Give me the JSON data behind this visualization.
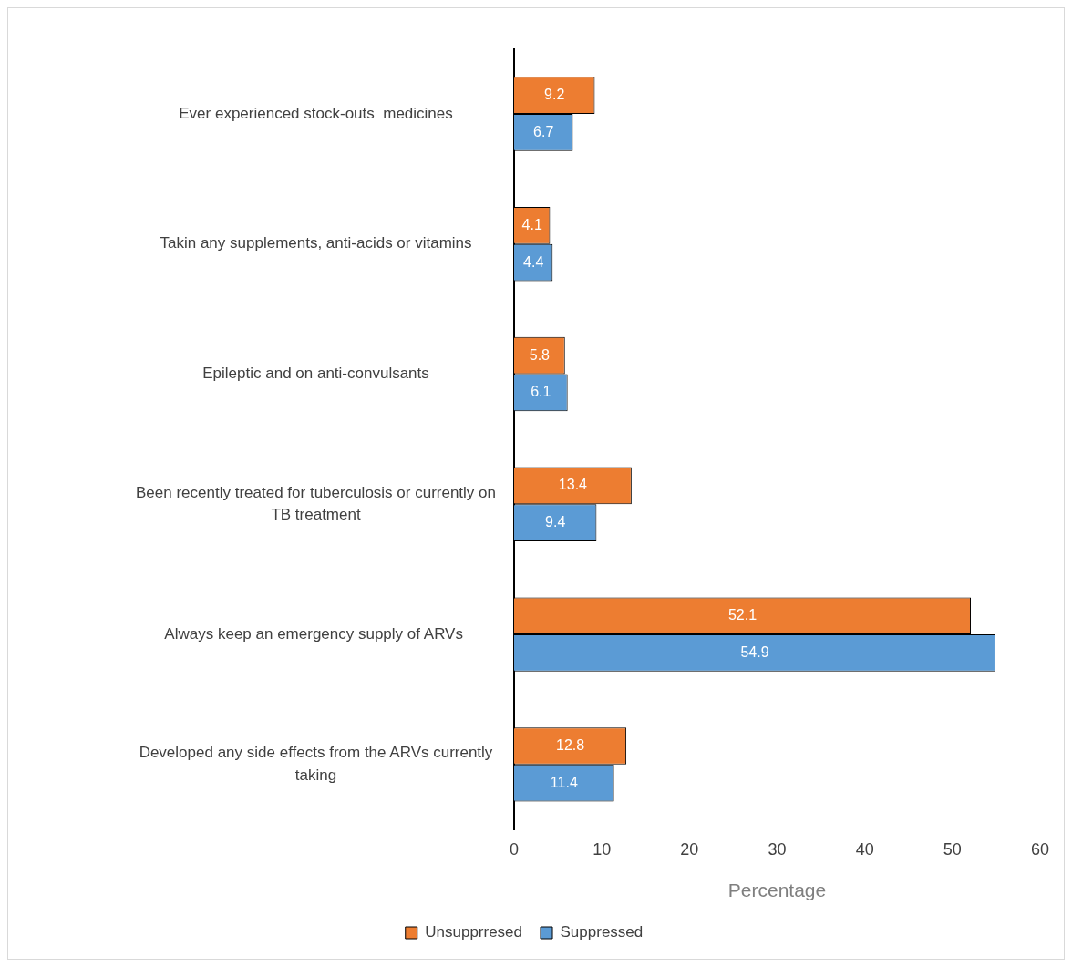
{
  "chart_data": {
    "type": "bar",
    "orientation": "horizontal",
    "xlabel": "Percentage",
    "categories": [
      "Ever experienced stock-outs  medicines",
      "Takin any supplements, anti-acids or vitamins",
      "Epileptic and on anti-convulsants",
      "Been recently treated for tuberculosis or currently on TB treatment",
      "Always keep an emergency supply of ARVs ",
      "Developed any side effects from the ARVs currently taking"
    ],
    "series": [
      {
        "name": "Unsupprresed",
        "color": "#ed7d31",
        "values": [
          9.2,
          4.1,
          5.8,
          13.4,
          52.1,
          12.8
        ]
      },
      {
        "name": "Suppressed",
        "color": "#5b9bd5",
        "values": [
          6.7,
          4.4,
          6.1,
          9.4,
          54.9,
          11.4
        ]
      }
    ],
    "xlim": [
      0,
      60
    ],
    "xticks": [
      0,
      10,
      20,
      30,
      40,
      50,
      60
    ],
    "grid": false,
    "legend": "bottom",
    "data_labels": true
  }
}
